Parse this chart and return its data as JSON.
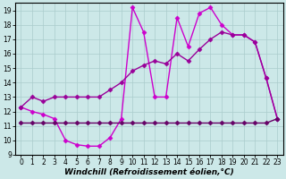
{
  "series": [
    {
      "x": [
        0,
        1,
        2,
        3,
        4,
        5,
        6,
        7,
        8,
        9,
        10,
        11,
        12,
        13,
        14,
        15,
        16,
        17,
        18,
        19,
        20,
        21,
        22,
        23
      ],
      "y": [
        12.3,
        12.0,
        11.8,
        11.5,
        10.0,
        9.7,
        9.6,
        9.6,
        10.2,
        11.5,
        19.2,
        17.5,
        13.0,
        13.0,
        18.5,
        16.5,
        18.8,
        19.2,
        18.0,
        17.3,
        17.3,
        16.8,
        14.3,
        11.5
      ],
      "color": "#cc00cc",
      "marker": "D",
      "markersize": 2.5,
      "linewidth": 1.0
    },
    {
      "x": [
        0,
        1,
        2,
        3,
        4,
        5,
        6,
        7,
        8,
        9,
        10,
        11,
        12,
        13,
        14,
        15,
        16,
        17,
        18,
        19,
        20,
        21,
        22,
        23
      ],
      "y": [
        12.3,
        13.0,
        12.7,
        13.0,
        13.0,
        13.0,
        13.0,
        13.0,
        13.5,
        14.0,
        14.8,
        15.2,
        15.5,
        15.3,
        16.0,
        15.5,
        16.3,
        17.0,
        17.5,
        17.3,
        17.3,
        16.8,
        14.3,
        11.5
      ],
      "color": "#990099",
      "marker": "D",
      "markersize": 2.5,
      "linewidth": 1.0
    },
    {
      "x": [
        0,
        1,
        2,
        3,
        4,
        5,
        6,
        7,
        8,
        9,
        10,
        11,
        12,
        13,
        14,
        15,
        16,
        17,
        18,
        19,
        20,
        21,
        22,
        23
      ],
      "y": [
        11.2,
        11.2,
        11.2,
        11.2,
        11.2,
        11.2,
        11.2,
        11.2,
        11.2,
        11.2,
        11.2,
        11.2,
        11.2,
        11.2,
        11.2,
        11.2,
        11.2,
        11.2,
        11.2,
        11.2,
        11.2,
        11.2,
        11.2,
        11.5
      ],
      "color": "#660066",
      "marker": "D",
      "markersize": 2.5,
      "linewidth": 1.0
    }
  ],
  "xlabel": "Windchill (Refroidissement éolien,°C)",
  "xlim": [
    -0.5,
    23.5
  ],
  "ylim": [
    9,
    19.5
  ],
  "xticks": [
    0,
    1,
    2,
    3,
    4,
    5,
    6,
    7,
    8,
    9,
    10,
    11,
    12,
    13,
    14,
    15,
    16,
    17,
    18,
    19,
    20,
    21,
    22,
    23
  ],
  "yticks": [
    9,
    10,
    11,
    12,
    13,
    14,
    15,
    16,
    17,
    18,
    19
  ],
  "background_color": "#cce8e8",
  "grid_color": "#aacccc",
  "tick_fontsize": 5.5,
  "xlabel_fontsize": 6.5
}
